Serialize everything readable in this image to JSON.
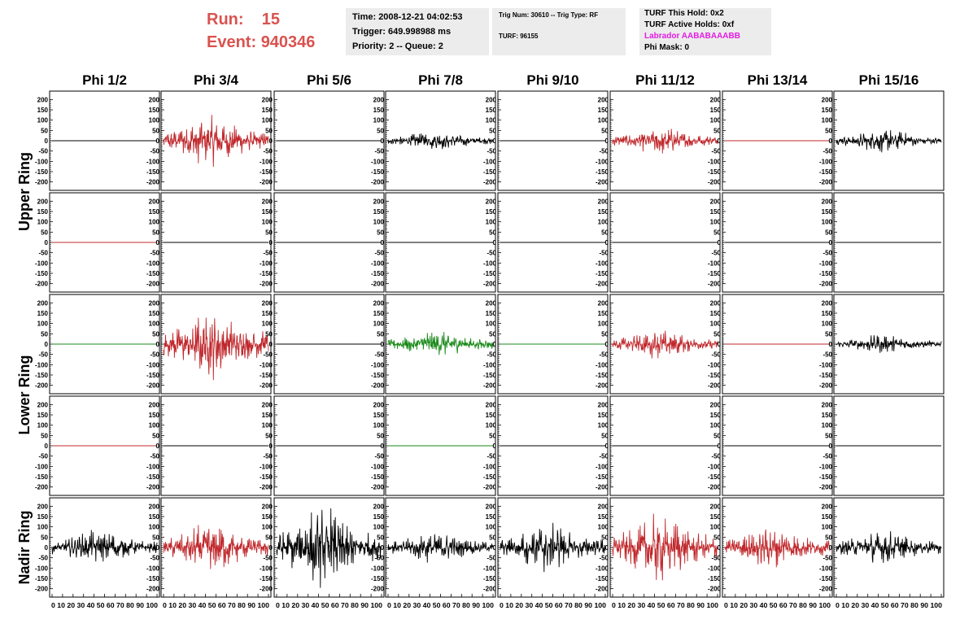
{
  "header": {
    "run_label": "Run:",
    "run_value": "15",
    "event_label": "Event:",
    "event_value": "940346",
    "time": "Time: 2008-12-21 04:02:53",
    "trigger": "Trigger: 649.998988 ms",
    "priority_queue": "Priority: 2 -- Queue: 2",
    "trig_info": "Trig Num: 30610 -- Trig Type: RF",
    "turf": "TURF: 96155",
    "turf_hold": "TURF This Hold: 0x2",
    "turf_active": "TURF Active Holds: 0xf",
    "labrador": "Labrador AABABAAABB",
    "phi_mask": "Phi Mask: 0"
  },
  "colors": {
    "title_red": "#d9534f",
    "labrador_magenta": "#e21ce2",
    "trace_black": "#000000",
    "trace_red": "#c0282c",
    "trace_green": "#1a8a1a",
    "panel_bg": "#ececec"
  },
  "phi_labels": [
    "Phi 1/2",
    "Phi 3/4",
    "Phi 5/6",
    "Phi 7/8",
    "Phi 9/10",
    "Phi 11/12",
    "Phi 13/14",
    "Phi 15/16"
  ],
  "ring_labels": [
    "Upper Ring",
    "Lower Ring",
    "Nadir Ring"
  ],
  "y_ticks": [
    200,
    150,
    100,
    50,
    0,
    -50,
    -100,
    -150,
    -200
  ],
  "x_ticks": [
    0,
    10,
    20,
    30,
    40,
    50,
    60,
    70,
    80,
    90,
    100
  ],
  "x_tick_text": "0 10 20 30 40 50 60 70 80 90 100",
  "chart_data": {
    "type": "line",
    "ylim": [
      -225,
      225
    ],
    "xlim": [
      0,
      100
    ],
    "rows": [
      {
        "ring": "Upper Ring",
        "channels": [
          {
            "phi": "Phi 1/2",
            "color": "black",
            "amplitude": 0
          },
          {
            "phi": "Phi 3/4",
            "color": "red",
            "amplitude": 130
          },
          {
            "phi": "Phi 5/6",
            "color": "black",
            "amplitude": 0
          },
          {
            "phi": "Phi 7/8",
            "color": "black",
            "amplitude": 50
          },
          {
            "phi": "Phi 9/10",
            "color": "black",
            "amplitude": 0
          },
          {
            "phi": "Phi 11/12",
            "color": "red",
            "amplitude": 70
          },
          {
            "phi": "Phi 13/14",
            "color": "red",
            "amplitude": 0
          },
          {
            "phi": "Phi 15/16",
            "color": "black",
            "amplitude": 60
          }
        ]
      },
      {
        "ring": "Upper Ring",
        "channels": [
          {
            "phi": "Phi 1/2",
            "color": "red",
            "amplitude": 0
          },
          {
            "phi": "Phi 3/4",
            "color": "black",
            "amplitude": 0
          },
          {
            "phi": "Phi 5/6",
            "color": "black",
            "amplitude": 0
          },
          {
            "phi": "Phi 7/8",
            "color": "black",
            "amplitude": 0
          },
          {
            "phi": "Phi 9/10",
            "color": "black",
            "amplitude": 0
          },
          {
            "phi": "Phi 11/12",
            "color": "black",
            "amplitude": 0
          },
          {
            "phi": "Phi 13/14",
            "color": "black",
            "amplitude": 0
          },
          {
            "phi": "Phi 15/16",
            "color": "black",
            "amplitude": 0
          }
        ]
      },
      {
        "ring": "Lower Ring",
        "channels": [
          {
            "phi": "Phi 1/2",
            "color": "green",
            "amplitude": 0
          },
          {
            "phi": "Phi 3/4",
            "color": "red",
            "amplitude": 180
          },
          {
            "phi": "Phi 5/6",
            "color": "black",
            "amplitude": 0
          },
          {
            "phi": "Phi 7/8",
            "color": "green",
            "amplitude": 70
          },
          {
            "phi": "Phi 9/10",
            "color": "green",
            "amplitude": 0
          },
          {
            "phi": "Phi 11/12",
            "color": "red",
            "amplitude": 75
          },
          {
            "phi": "Phi 13/14",
            "color": "red",
            "amplitude": 0
          },
          {
            "phi": "Phi 15/16",
            "color": "black",
            "amplitude": 50
          }
        ]
      },
      {
        "ring": "Lower Ring",
        "channels": [
          {
            "phi": "Phi 1/2",
            "color": "red",
            "amplitude": 0
          },
          {
            "phi": "Phi 3/4",
            "color": "black",
            "amplitude": 0
          },
          {
            "phi": "Phi 5/6",
            "color": "black",
            "amplitude": 0
          },
          {
            "phi": "Phi 7/8",
            "color": "green",
            "amplitude": 0
          },
          {
            "phi": "Phi 9/10",
            "color": "black",
            "amplitude": 0
          },
          {
            "phi": "Phi 11/12",
            "color": "black",
            "amplitude": 0
          },
          {
            "phi": "Phi 13/14",
            "color": "black",
            "amplitude": 0
          },
          {
            "phi": "Phi 15/16",
            "color": "black",
            "amplitude": 0
          }
        ]
      },
      {
        "ring": "Nadir Ring",
        "channels": [
          {
            "phi": "Phi 1/2",
            "color": "black",
            "amplitude": 90
          },
          {
            "phi": "Phi 3/4",
            "color": "red",
            "amplitude": 130
          },
          {
            "phi": "Phi 5/6",
            "color": "black",
            "amplitude": 210
          },
          {
            "phi": "Phi 7/8",
            "color": "black",
            "amplitude": 80
          },
          {
            "phi": "Phi 9/10",
            "color": "black",
            "amplitude": 130
          },
          {
            "phi": "Phi 11/12",
            "color": "red",
            "amplitude": 180
          },
          {
            "phi": "Phi 13/14",
            "color": "red",
            "amplitude": 110
          },
          {
            "phi": "Phi 15/16",
            "color": "black",
            "amplitude": 90
          }
        ]
      }
    ]
  }
}
